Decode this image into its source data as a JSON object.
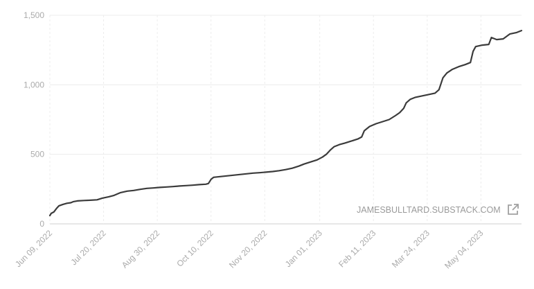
{
  "chart_data": {
    "type": "line",
    "title": "",
    "xlabel": "",
    "ylabel": "",
    "ylim": [
      0,
      1500
    ],
    "xlim": [
      "2022-06-09",
      "2023-06-04"
    ],
    "grid": true,
    "y_ticks": [
      0,
      500,
      1000,
      1500
    ],
    "y_tick_labels": [
      "0",
      "500",
      "1,000",
      "1,500"
    ],
    "x_ticks": [
      "2022-06-09",
      "2022-07-20",
      "2022-08-30",
      "2022-10-10",
      "2022-11-20",
      "2023-01-01",
      "2023-02-11",
      "2023-03-24",
      "2023-05-04"
    ],
    "x_tick_labels": [
      "Jun 09, 2022",
      "Jul 20, 2022",
      "Aug 30, 2022",
      "Oct 10, 2022",
      "Nov 20, 2022",
      "Jan 01, 2023",
      "Feb 11, 2023",
      "Mar 24, 2023",
      "May 04, 2023"
    ],
    "series": [
      {
        "color": "#3b3b3b",
        "points": [
          [
            "2022-06-09",
            60
          ],
          [
            "2022-06-10",
            75
          ],
          [
            "2022-06-12",
            85
          ],
          [
            "2022-06-14",
            110
          ],
          [
            "2022-06-16",
            130
          ],
          [
            "2022-06-19",
            140
          ],
          [
            "2022-06-22",
            148
          ],
          [
            "2022-06-25",
            152
          ],
          [
            "2022-06-27",
            160
          ],
          [
            "2022-06-30",
            165
          ],
          [
            "2022-07-05",
            168
          ],
          [
            "2022-07-10",
            170
          ],
          [
            "2022-07-15",
            173
          ],
          [
            "2022-07-19",
            185
          ],
          [
            "2022-07-24",
            195
          ],
          [
            "2022-07-28",
            205
          ],
          [
            "2022-08-02",
            225
          ],
          [
            "2022-08-07",
            235
          ],
          [
            "2022-08-12",
            240
          ],
          [
            "2022-08-17",
            248
          ],
          [
            "2022-08-22",
            255
          ],
          [
            "2022-08-27",
            258
          ],
          [
            "2022-09-01",
            262
          ],
          [
            "2022-09-06",
            265
          ],
          [
            "2022-09-11",
            268
          ],
          [
            "2022-09-16",
            272
          ],
          [
            "2022-09-21",
            275
          ],
          [
            "2022-09-26",
            278
          ],
          [
            "2022-10-01",
            282
          ],
          [
            "2022-10-06",
            285
          ],
          [
            "2022-10-08",
            290
          ],
          [
            "2022-10-10",
            320
          ],
          [
            "2022-10-12",
            335
          ],
          [
            "2022-10-17",
            340
          ],
          [
            "2022-10-22",
            345
          ],
          [
            "2022-10-27",
            350
          ],
          [
            "2022-11-01",
            355
          ],
          [
            "2022-11-06",
            360
          ],
          [
            "2022-11-11",
            365
          ],
          [
            "2022-11-16",
            368
          ],
          [
            "2022-11-21",
            372
          ],
          [
            "2022-11-26",
            376
          ],
          [
            "2022-12-01",
            382
          ],
          [
            "2022-12-06",
            390
          ],
          [
            "2022-12-11",
            400
          ],
          [
            "2022-12-16",
            415
          ],
          [
            "2022-12-20",
            430
          ],
          [
            "2022-12-25",
            445
          ],
          [
            "2022-12-30",
            460
          ],
          [
            "2023-01-03",
            480
          ],
          [
            "2023-01-06",
            500
          ],
          [
            "2023-01-09",
            530
          ],
          [
            "2023-01-12",
            555
          ],
          [
            "2023-01-16",
            570
          ],
          [
            "2023-01-20",
            580
          ],
          [
            "2023-01-25",
            595
          ],
          [
            "2023-01-30",
            610
          ],
          [
            "2023-02-02",
            625
          ],
          [
            "2023-02-04",
            670
          ],
          [
            "2023-02-08",
            700
          ],
          [
            "2023-02-13",
            720
          ],
          [
            "2023-02-18",
            735
          ],
          [
            "2023-02-23",
            750
          ],
          [
            "2023-02-28",
            780
          ],
          [
            "2023-03-03",
            800
          ],
          [
            "2023-03-06",
            830
          ],
          [
            "2023-03-08",
            870
          ],
          [
            "2023-03-11",
            895
          ],
          [
            "2023-03-15",
            910
          ],
          [
            "2023-03-20",
            920
          ],
          [
            "2023-03-25",
            930
          ],
          [
            "2023-03-30",
            940
          ],
          [
            "2023-04-02",
            965
          ],
          [
            "2023-04-05",
            1050
          ],
          [
            "2023-04-08",
            1085
          ],
          [
            "2023-04-12",
            1110
          ],
          [
            "2023-04-17",
            1130
          ],
          [
            "2023-04-22",
            1145
          ],
          [
            "2023-04-26",
            1160
          ],
          [
            "2023-04-28",
            1240
          ],
          [
            "2023-04-30",
            1275
          ],
          [
            "2023-05-05",
            1285
          ],
          [
            "2023-05-10",
            1290
          ],
          [
            "2023-05-12",
            1340
          ],
          [
            "2023-05-16",
            1325
          ],
          [
            "2023-05-21",
            1330
          ],
          [
            "2023-05-26",
            1365
          ],
          [
            "2023-05-31",
            1375
          ],
          [
            "2023-06-04",
            1390
          ]
        ]
      }
    ]
  },
  "watermark": {
    "text": "JAMESBULLTARD.SUBSTACK.COM",
    "icon": "external-link-icon",
    "color": "#9a9a9a"
  }
}
